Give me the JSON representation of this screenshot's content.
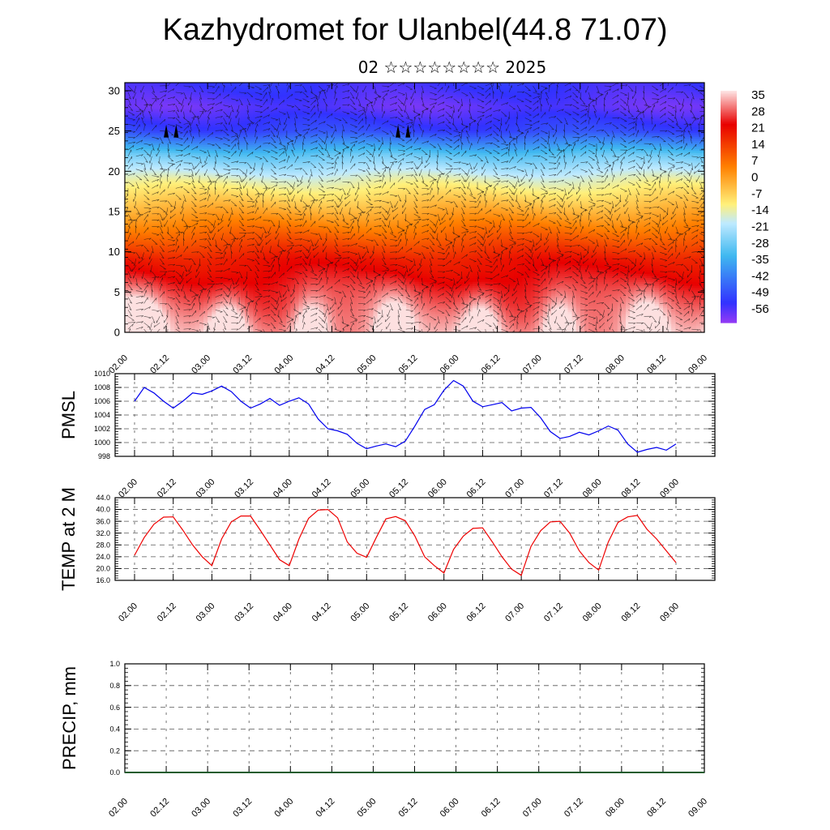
{
  "header": {
    "title": "Kazhydromet for Ulanbel(44.8 71.07)",
    "subtitle": "02 ☆☆☆☆☆☆☆☆ 2025"
  },
  "chart_data": [
    {
      "type": "heatmap",
      "title": "",
      "x_ticks": [
        "02.00",
        "02.12",
        "03.00",
        "03.12",
        "04.00",
        "04.12",
        "05.00",
        "05.12",
        "06.00",
        "06.12",
        "07.00",
        "07.12",
        "08.00",
        "08.12",
        "09.00"
      ],
      "y_ticks": [
        "0",
        "5",
        "10",
        "15",
        "20",
        "25",
        "30"
      ],
      "ylim": [
        0,
        31
      ],
      "colorbar": {
        "labels": [
          "35",
          "28",
          "21",
          "14",
          "7",
          "0",
          "-7",
          "-14",
          "-21",
          "-28",
          "-35",
          "-42",
          "-49",
          "-56"
        ],
        "values": [
          35,
          28,
          21,
          14,
          7,
          0,
          -7,
          -14,
          -21,
          -28,
          -35,
          -42,
          -49,
          -56
        ]
      },
      "colors": {
        "hot": "#fde0e0",
        "warm": "#e80000",
        "orange": "#ff8000",
        "yellow": "#fff07a",
        "light_blue": "#bfeaff",
        "cyan": "#3fb8f0",
        "blue": "#3232ff",
        "purple": "#8f3af5"
      },
      "wind_arrows": true,
      "temperature_field": {
        "profile_height": [
          0,
          5,
          9,
          11,
          13,
          15,
          17,
          19,
          22,
          25,
          28,
          31
        ],
        "profile_temp": [
          33,
          27,
          21,
          14,
          7,
          0,
          -7,
          -14,
          -28,
          -49,
          -56,
          -52
        ],
        "surface_peak_x": [
          0.0,
          0.25,
          1.25,
          2.25,
          3.25,
          4.3,
          5.25,
          6.3,
          7.3
        ]
      },
      "markers": {
        "x": [
          0.5,
          0.62,
          3.3,
          3.42
        ],
        "y": [
          25,
          25,
          25,
          25
        ]
      }
    },
    {
      "type": "line",
      "ylabel": "PMSL",
      "x_ticks": [
        "02.00",
        "02.12",
        "03.00",
        "03.12",
        "04.00",
        "04.12",
        "05.00",
        "05.12",
        "06.00",
        "06.12",
        "07.00",
        "07.12",
        "08.00",
        "08.12",
        "09.00"
      ],
      "y_ticks": [
        "998",
        "1000",
        "1002",
        "1004",
        "1006",
        "1008",
        "1010"
      ],
      "ylim": [
        998,
        1010
      ],
      "color": "#0000ee",
      "series": [
        {
          "x": [
            0,
            0.125,
            0.25,
            0.375,
            0.5,
            0.625,
            0.75,
            0.875,
            1,
            1.125,
            1.25,
            1.375,
            1.5,
            1.625,
            1.75,
            1.875,
            2,
            2.125,
            2.25,
            2.375,
            2.5,
            2.625,
            2.75,
            2.875,
            3,
            3.125,
            3.25,
            3.375,
            3.5,
            3.625,
            3.75,
            3.875,
            4,
            4.125,
            4.25,
            4.375,
            4.5,
            4.625,
            4.75,
            4.875,
            5,
            5.125,
            5.25,
            5.375,
            5.5,
            5.625,
            5.75,
            5.875,
            6,
            6.125,
            6.25,
            6.375,
            6.5,
            6.625,
            6.75,
            6.875,
            7
          ],
          "values": [
            1006,
            1008,
            1007.2,
            1006,
            1005,
            1006,
            1007.2,
            1007,
            1007.5,
            1008.2,
            1007.4,
            1006,
            1005,
            1005.6,
            1006.4,
            1005.4,
            1006,
            1006.5,
            1005.6,
            1003.4,
            1002,
            1001.7,
            1001.2,
            999.9,
            999.1,
            999.5,
            999.8,
            999.4,
            1000.2,
            1002.4,
            1004.8,
            1005.5,
            1007.6,
            1009,
            1008.2,
            1006,
            1005.2,
            1005.5,
            1005.8,
            1004.6,
            1005,
            1005.1,
            1003.6,
            1001.6,
            1000.6,
            1000.9,
            1001.5,
            1001.1,
            1001.7,
            1002.4,
            1001.8,
            999.8,
            998.6,
            999,
            999.3,
            998.9,
            999.8
          ]
        }
      ]
    },
    {
      "type": "line",
      "ylabel": "TEMP at 2 M",
      "x_ticks": [
        "02.00",
        "02.12",
        "03.00",
        "03.12",
        "04.00",
        "04.12",
        "05.00",
        "05.12",
        "06.00",
        "06.12",
        "07.00",
        "07.12",
        "08.00",
        "08.12",
        "09.00"
      ],
      "y_ticks": [
        "16.0",
        "20.0",
        "24.0",
        "28.0",
        "32.0",
        "36.0",
        "40.0",
        "44.0"
      ],
      "ylim": [
        16,
        44
      ],
      "color": "#ee0000",
      "series": [
        {
          "x": [
            0,
            0.125,
            0.25,
            0.375,
            0.5,
            0.625,
            0.75,
            0.875,
            1,
            1.125,
            1.25,
            1.375,
            1.5,
            1.625,
            1.75,
            1.875,
            2,
            2.125,
            2.25,
            2.375,
            2.5,
            2.625,
            2.75,
            2.875,
            3,
            3.125,
            3.25,
            3.375,
            3.5,
            3.625,
            3.75,
            3.875,
            4,
            4.125,
            4.25,
            4.375,
            4.5,
            4.625,
            4.75,
            4.875,
            5,
            5.125,
            5.25,
            5.375,
            5.5,
            5.625,
            5.75,
            5.875,
            6,
            6.125,
            6.25,
            6.375,
            6.5,
            6.625,
            6.75,
            6.875,
            7
          ],
          "values": [
            24.5,
            30.5,
            35,
            37.4,
            37.5,
            33,
            28,
            24,
            21,
            30,
            35.8,
            37.8,
            37.8,
            33,
            28,
            23,
            21,
            30,
            37,
            39.8,
            40,
            37.2,
            29,
            25.2,
            23.8,
            30.5,
            36.8,
            37.6,
            36.2,
            31,
            24,
            21,
            18.5,
            26.5,
            31,
            33.6,
            33.8,
            29,
            24,
            19.8,
            17.7,
            27.5,
            32.8,
            35.8,
            36,
            32,
            26,
            22,
            19.5,
            29,
            35.6,
            37.5,
            38,
            33.3,
            30,
            26,
            22
          ]
        }
      ]
    },
    {
      "type": "bar",
      "ylabel": "PRECIP, mm",
      "x_ticks": [
        "02.00",
        "02.12",
        "03.00",
        "03.12",
        "04.00",
        "04.12",
        "05.00",
        "05.12",
        "06.00",
        "06.12",
        "07.00",
        "07.12",
        "08.00",
        "08.12",
        "09.00"
      ],
      "y_ticks": [
        "0.0",
        "0.2",
        "0.4",
        "0.6",
        "0.8",
        "1.0"
      ],
      "ylim": [
        0,
        1
      ],
      "values": []
    }
  ]
}
